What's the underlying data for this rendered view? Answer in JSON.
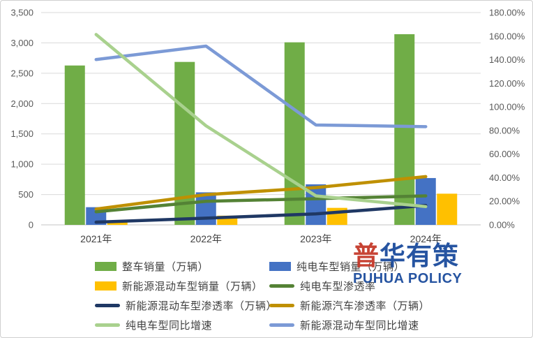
{
  "chart_data": {
    "type": "combo-bar-line",
    "title": "",
    "categories": [
      "2021年",
      "2022年",
      "2023年",
      "2024年"
    ],
    "left_axis": {
      "min": 0,
      "max": 3500,
      "step": 500,
      "tick_labels": [
        "0",
        "500",
        "1,000",
        "1,500",
        "2,000",
        "2,500",
        "3,000",
        "3,500"
      ]
    },
    "right_axis": {
      "min": 0,
      "max": 180,
      "step": 20,
      "tick_labels": [
        "0.00%",
        "20.00%",
        "40.00%",
        "60.00%",
        "80.00%",
        "100.00%",
        "120.00%",
        "140.00%",
        "160.00%",
        "180.00%"
      ]
    },
    "grid": true,
    "bar_series": [
      {
        "name": "整车销量（万辆）",
        "color": "#70AD47",
        "axis": "left",
        "values": [
          2627.5,
          2686.4,
          3009.4,
          3143.6
        ]
      },
      {
        "name": "纯电车型销量（万辆）",
        "color": "#4472C4",
        "axis": "left",
        "values": [
          291.6,
          536.5,
          668.5,
          771.9
        ]
      },
      {
        "name": "新能源混动车型销量（万辆）",
        "color": "#FFC000",
        "axis": "left",
        "values": [
          60.3,
          151.8,
          280.4,
          514.1
        ]
      }
    ],
    "line_series": [
      {
        "name": "纯电车型渗透率",
        "color": "#548235",
        "axis": "right",
        "values": [
          11.1,
          20.0,
          22.2,
          24.6
        ]
      },
      {
        "name": "新能源混动车型渗透率（万辆）",
        "color": "#1F3864",
        "axis": "right",
        "values": [
          2.3,
          5.7,
          9.3,
          16.4
        ]
      },
      {
        "name": "新能源汽车渗透率（万辆）",
        "color": "#BF9000",
        "axis": "right",
        "values": [
          13.4,
          25.6,
          31.6,
          40.9
        ]
      },
      {
        "name": "纯电车型同比增速",
        "color": "#A9D18E",
        "axis": "right",
        "values": [
          161.4,
          84.0,
          24.6,
          15.5
        ]
      },
      {
        "name": "新能源混动车型同比增速",
        "color": "#7C9AD6",
        "axis": "right",
        "values": [
          140.2,
          151.6,
          84.7,
          83.3
        ]
      }
    ],
    "legend_position": "bottom"
  },
  "legend": {
    "items": [
      {
        "label": "整车销量（万辆）",
        "type": "bar",
        "color": "#70AD47"
      },
      {
        "label": "纯电车型销量（万辆）",
        "type": "bar",
        "color": "#4472C4"
      },
      {
        "label": "新能源混动车型销量（万辆）",
        "type": "bar",
        "color": "#FFC000"
      },
      {
        "label": "纯电车型渗透率",
        "type": "line",
        "color": "#548235"
      },
      {
        "label": "新能源混动车型渗透率（万辆）",
        "type": "line",
        "color": "#1F3864"
      },
      {
        "label": "新能源汽车渗透率（万辆）",
        "type": "line",
        "color": "#BF9000"
      },
      {
        "label": "纯电车型同比增速",
        "type": "line",
        "color": "#A9D18E"
      },
      {
        "label": "新能源混动车型同比增速",
        "type": "line",
        "color": "#7C9AD6"
      }
    ]
  },
  "logo": {
    "zh_first": "普",
    "zh_rest": "华有策",
    "en": "PUHUA POLICY",
    "red": "#C5392A",
    "blue": "#1B4B9C"
  },
  "colors": {
    "gridline": "#D9D9D9",
    "axis_line": "#C6C6C6",
    "axis_text": "#595959",
    "legend_text": "#404040"
  }
}
